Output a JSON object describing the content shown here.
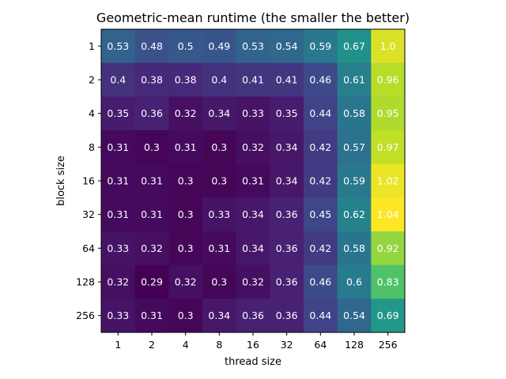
{
  "chart_data": {
    "type": "heatmap",
    "title": "Geometric-mean runtime (the smaller the better)",
    "xlabel": "thread size",
    "ylabel": "block size",
    "x_categories": [
      "1",
      "2",
      "4",
      "8",
      "16",
      "32",
      "64",
      "128",
      "256"
    ],
    "y_categories": [
      "1",
      "2",
      "4",
      "8",
      "16",
      "32",
      "64",
      "128",
      "256"
    ],
    "values": [
      [
        0.53,
        0.48,
        0.5,
        0.49,
        0.53,
        0.54,
        0.59,
        0.67,
        1.0
      ],
      [
        0.4,
        0.38,
        0.38,
        0.4,
        0.41,
        0.41,
        0.46,
        0.61,
        0.96
      ],
      [
        0.35,
        0.36,
        0.32,
        0.34,
        0.33,
        0.35,
        0.44,
        0.58,
        0.95
      ],
      [
        0.31,
        0.3,
        0.31,
        0.3,
        0.32,
        0.34,
        0.42,
        0.57,
        0.97
      ],
      [
        0.31,
        0.31,
        0.3,
        0.3,
        0.31,
        0.34,
        0.42,
        0.59,
        1.02
      ],
      [
        0.31,
        0.31,
        0.3,
        0.33,
        0.34,
        0.36,
        0.45,
        0.62,
        1.04
      ],
      [
        0.33,
        0.32,
        0.3,
        0.31,
        0.34,
        0.36,
        0.42,
        0.58,
        0.92
      ],
      [
        0.32,
        0.29,
        0.32,
        0.3,
        0.32,
        0.36,
        0.46,
        0.6,
        0.83
      ],
      [
        0.33,
        0.31,
        0.3,
        0.34,
        0.36,
        0.36,
        0.44,
        0.54,
        0.69
      ]
    ],
    "value_labels": [
      [
        "0.53",
        "0.48",
        "0.5",
        "0.49",
        "0.53",
        "0.54",
        "0.59",
        "0.67",
        "1.0"
      ],
      [
        "0.4",
        "0.38",
        "0.38",
        "0.4",
        "0.41",
        "0.41",
        "0.46",
        "0.61",
        "0.96"
      ],
      [
        "0.35",
        "0.36",
        "0.32",
        "0.34",
        "0.33",
        "0.35",
        "0.44",
        "0.58",
        "0.95"
      ],
      [
        "0.31",
        "0.3",
        "0.31",
        "0.3",
        "0.32",
        "0.34",
        "0.42",
        "0.57",
        "0.97"
      ],
      [
        "0.31",
        "0.31",
        "0.3",
        "0.3",
        "0.31",
        "0.34",
        "0.42",
        "0.59",
        "1.02"
      ],
      [
        "0.31",
        "0.31",
        "0.3",
        "0.33",
        "0.34",
        "0.36",
        "0.45",
        "0.62",
        "1.04"
      ],
      [
        "0.33",
        "0.32",
        "0.3",
        "0.31",
        "0.34",
        "0.36",
        "0.42",
        "0.58",
        "0.92"
      ],
      [
        "0.32",
        "0.29",
        "0.32",
        "0.3",
        "0.32",
        "0.36",
        "0.46",
        "0.6",
        "0.83"
      ],
      [
        "0.33",
        "0.31",
        "0.3",
        "0.34",
        "0.36",
        "0.36",
        "0.44",
        "0.54",
        "0.69"
      ]
    ],
    "colormap": "viridis",
    "color_range": [
      0.29,
      1.04
    ],
    "label_color": "#ffffff",
    "grid": false,
    "legend": "none"
  }
}
